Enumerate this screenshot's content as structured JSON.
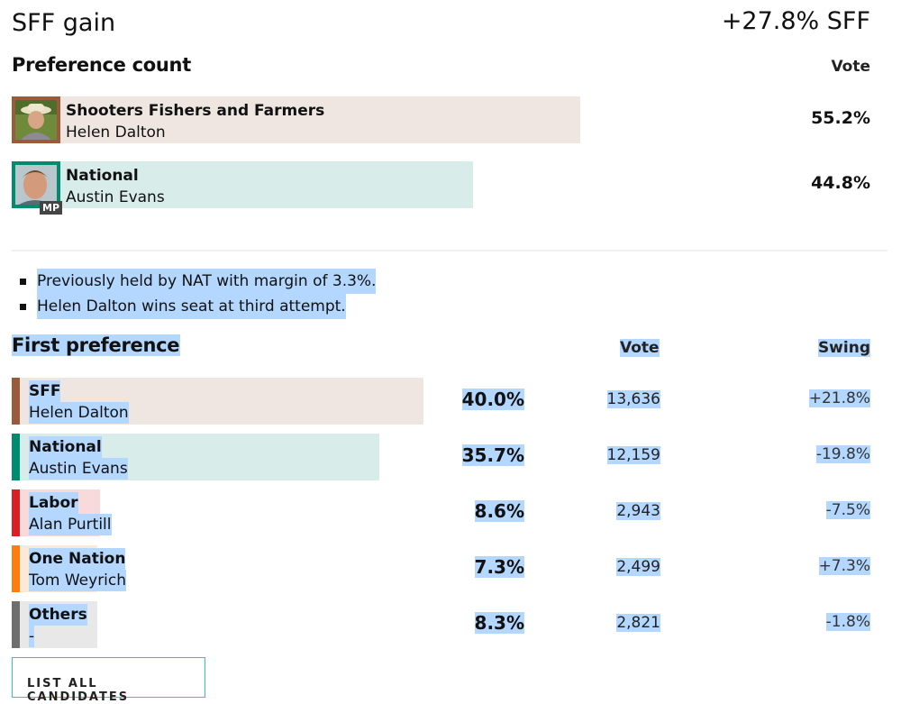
{
  "header": {
    "title": "SFF gain",
    "swing_summary": "+27.8% SFF"
  },
  "preference_count": {
    "heading": "Preference count",
    "vote_label": "Vote",
    "candidates": [
      {
        "party": "Shooters Fishers and Farmers",
        "name": "Helen Dalton",
        "vote": "55.2%",
        "share": 55.2,
        "color": "#9a5a3c",
        "bg": "#efe5e1",
        "badge": ""
      },
      {
        "party": "National",
        "name": "Austin Evans",
        "vote": "44.8%",
        "share": 44.8,
        "color": "#008a6e",
        "bg": "#d8ece9",
        "badge": "MP"
      }
    ]
  },
  "notes": [
    "Previously held by NAT with margin of 3.3%.",
    "Helen Dalton wins seat at third attempt."
  ],
  "first_preference": {
    "heading": "First preference",
    "vote_label": "Vote",
    "swing_label": "Swing",
    "rows": [
      {
        "party": "SFF",
        "name": "Helen Dalton",
        "pct": "40.0%",
        "share": 40.0,
        "votes": "13,636",
        "swing": "+21.8%",
        "color": "#9a5a3c",
        "bg": "#efe5e1"
      },
      {
        "party": "National",
        "name": "Austin Evans",
        "pct": "35.7%",
        "share": 35.7,
        "votes": "12,159",
        "swing": "-19.8%",
        "color": "#008a6e",
        "bg": "#d8ece9"
      },
      {
        "party": "Labor",
        "name": "Alan Purtill",
        "pct": "8.6%",
        "share": 8.6,
        "votes": "2,943",
        "swing": "-7.5%",
        "color": "#d91f26",
        "bg": "#f9dada"
      },
      {
        "party": "One Nation",
        "name": "Tom Weyrich",
        "pct": "7.3%",
        "share": 7.3,
        "votes": "2,499",
        "swing": "+7.3%",
        "color": "#ff7d0f",
        "bg": "#fde9d7"
      },
      {
        "party": "Others",
        "name": "-",
        "pct": "8.3%",
        "share": 8.3,
        "votes": "2,821",
        "swing": "-1.8%",
        "color": "#6e6e6e",
        "bg": "#e8e8e8"
      }
    ]
  },
  "list_button": "LIST ALL CANDIDATES"
}
